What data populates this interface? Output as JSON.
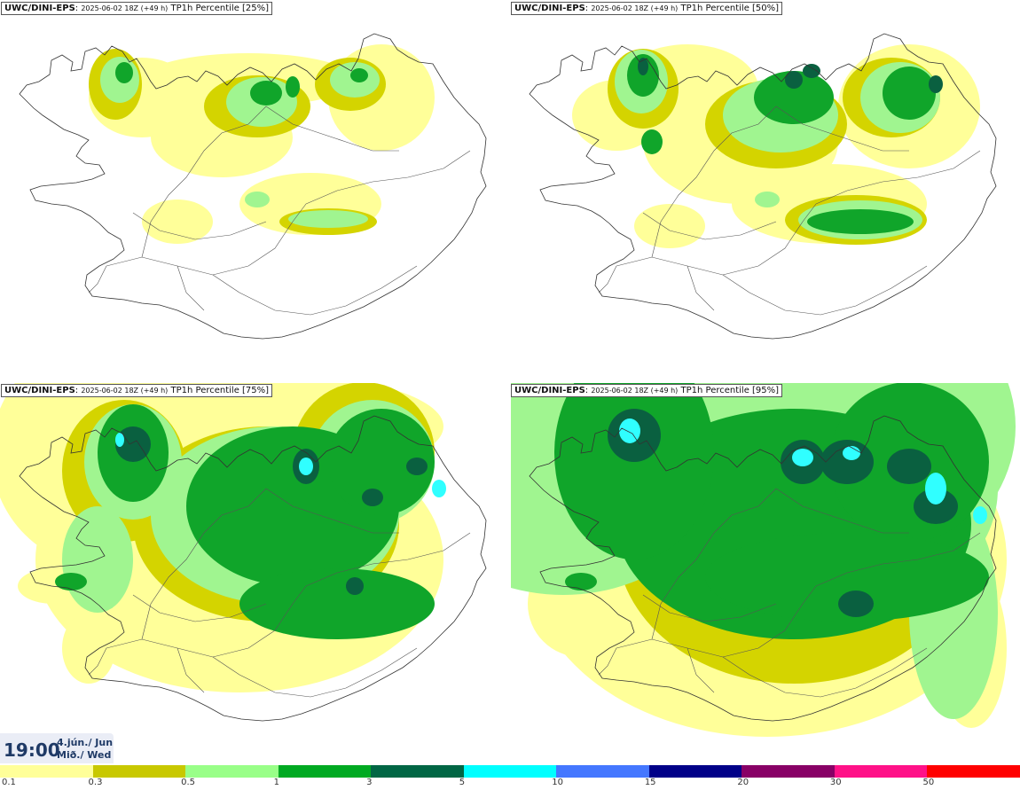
{
  "panels": [
    {
      "id": "p25",
      "model": "UWC/DINI-EPS",
      "run": "2025-06-02 18Z (+49 h)",
      "product": "TP1h Percentile [25%]",
      "percentile": 25
    },
    {
      "id": "p50",
      "model": "UWC/DINI-EPS",
      "run": "2025-06-02 18Z (+49 h)",
      "product": "TP1h Percentile [50%]",
      "percentile": 50
    },
    {
      "id": "p75",
      "model": "UWC/DINI-EPS",
      "run": "2025-06-02 18Z (+49 h)",
      "product": "TP1h Percentile [75%]",
      "percentile": 75
    },
    {
      "id": "p95",
      "model": "UWC/DINI-EPS",
      "run": "2025-06-02 18Z (+49 h)",
      "product": "TP1h Percentile [95%]",
      "percentile": 95
    }
  ],
  "time": {
    "clock": "19:00",
    "date_line1": "4.jún./ Jun",
    "date_line2": "Mið./ Wed"
  },
  "legend": {
    "thresholds": [
      "0.1",
      "0.3",
      "0.5",
      "1",
      "3",
      "5",
      "10",
      "15",
      "20",
      "30",
      "50"
    ],
    "colors": [
      "#ffff99",
      "#c8c800",
      "#99ff88",
      "#00aa22",
      "#006644",
      "#00ffff",
      "#4477ff",
      "#000088",
      "#880066",
      "#ff1188",
      "#ff0000"
    ]
  },
  "colors": {
    "lt01": "#ffff99",
    "lt03": "#d4d400",
    "lt05": "#a0f590",
    "lt1": "#10a52a",
    "lt3": "#0a6040",
    "lt5": "#30ffff",
    "coast": "#333333"
  }
}
